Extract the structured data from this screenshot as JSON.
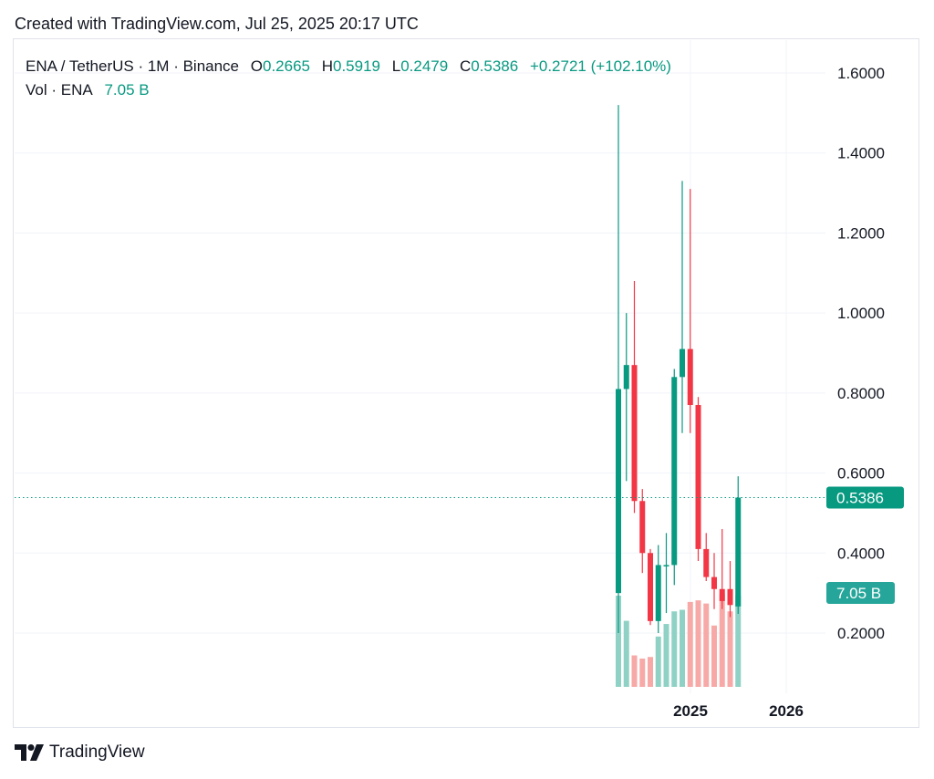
{
  "header": {
    "created_text": "Created with TradingView.com, Jul 25, 2025 20:17 UTC"
  },
  "legend": {
    "symbol": "ENA / TetherUS · 1M · Binance",
    "o_label": "O",
    "o_value": "0.2665",
    "h_label": "H",
    "h_value": "0.5919",
    "l_label": "L",
    "l_value": "0.2479",
    "c_label": "C",
    "c_value": "0.5386",
    "change": "+0.2721 (+102.10%)",
    "vol_label": "Vol · ENA",
    "vol_value": "7.05 B"
  },
  "footer": {
    "brand": "TradingView",
    "logo_icon": "tradingview-logo-icon"
  },
  "colors": {
    "up": "#089981",
    "down": "#f23645",
    "vol_up": "#8fd2c5",
    "vol_down": "#f7a9a7",
    "badge_price": "#089981",
    "badge_vol": "#26a69a",
    "grid": "#f0f3fa"
  },
  "chart_data": {
    "type": "candlestick",
    "title": "ENA / TetherUS · 1M · Binance",
    "y_axis": {
      "ticks": [
        "1.6000",
        "1.4000",
        "1.2000",
        "1.0000",
        "0.8000",
        "0.6000",
        "0.4000",
        "0.2000"
      ],
      "position": "right"
    },
    "x_axis": {
      "ticks": [
        "2025",
        "2026"
      ]
    },
    "grid": true,
    "last_price": "0.5386",
    "last_volume_label": "7.05 B",
    "series": [
      {
        "name": "ENA/USDT",
        "candles": [
          {
            "o": 0.3,
            "h": 1.52,
            "l": 0.2,
            "c": 0.81
          },
          {
            "o": 0.81,
            "h": 1.0,
            "l": 0.58,
            "c": 0.87
          },
          {
            "o": 0.87,
            "h": 1.08,
            "l": 0.5,
            "c": 0.53
          },
          {
            "o": 0.53,
            "h": 0.56,
            "l": 0.35,
            "c": 0.4
          },
          {
            "o": 0.4,
            "h": 0.41,
            "l": 0.22,
            "c": 0.23
          },
          {
            "o": 0.23,
            "h": 0.42,
            "l": 0.2,
            "c": 0.37
          },
          {
            "o": 0.37,
            "h": 0.45,
            "l": 0.25,
            "c": 0.37
          },
          {
            "o": 0.37,
            "h": 0.86,
            "l": 0.32,
            "c": 0.84
          },
          {
            "o": 0.84,
            "h": 1.33,
            "l": 0.7,
            "c": 0.91
          },
          {
            "o": 0.91,
            "h": 1.31,
            "l": 0.7,
            "c": 0.77
          },
          {
            "o": 0.77,
            "h": 0.79,
            "l": 0.38,
            "c": 0.41
          },
          {
            "o": 0.41,
            "h": 0.45,
            "l": 0.33,
            "c": 0.34
          },
          {
            "o": 0.34,
            "h": 0.4,
            "l": 0.26,
            "c": 0.31
          },
          {
            "o": 0.31,
            "h": 0.46,
            "l": 0.26,
            "c": 0.28
          },
          {
            "o": 0.31,
            "h": 0.38,
            "l": 0.24,
            "c": 0.27
          },
          {
            "o": 0.2665,
            "h": 0.5919,
            "l": 0.2479,
            "c": 0.5386
          }
        ]
      },
      {
        "name": "Vol · ENA",
        "volumes": [
          2.9,
          2.1,
          1.0,
          0.9,
          0.95,
          1.6,
          2.0,
          2.4,
          2.45,
          2.7,
          2.75,
          2.65,
          1.95,
          2.95,
          2.4,
          7.05
        ]
      }
    ]
  }
}
